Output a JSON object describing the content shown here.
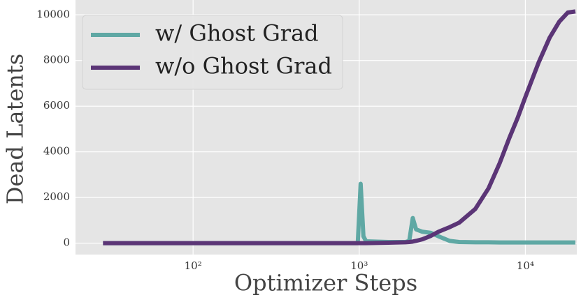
{
  "chart_data": {
    "type": "line",
    "x_label": "Optimizer Steps",
    "y_label": "Dead Latents",
    "x": [
      28.7,
      100,
      500,
      900,
      980,
      1020,
      1060,
      1100,
      1500,
      1900,
      2000,
      2100,
      2200,
      2400,
      2700,
      3000,
      3500,
      4000,
      5000,
      6000,
      7000,
      8000,
      9000,
      10000,
      12000,
      14000,
      16000,
      18000,
      20000
    ],
    "series": [
      {
        "name": "w/ Ghost Grad",
        "color": "#5fa8a4",
        "values": [
          0,
          0,
          0,
          0,
          0,
          2600,
          300,
          80,
          50,
          50,
          100,
          1100,
          600,
          500,
          450,
          300,
          100,
          50,
          40,
          40,
          30,
          30,
          30,
          30,
          30,
          30,
          30,
          30,
          30
        ]
      },
      {
        "name": "w/o Ghost Grad",
        "color": "#5b3576",
        "values": [
          0,
          0,
          0,
          0,
          0,
          0,
          0,
          0,
          20,
          40,
          50,
          70,
          100,
          170,
          320,
          500,
          700,
          900,
          1500,
          2400,
          3500,
          4600,
          5500,
          6400,
          7900,
          9000,
          9700,
          10100,
          10150
        ]
      }
    ],
    "xlog": true,
    "xlim": [
      19.6,
      20400
    ],
    "xticks": [
      {
        "value": 100,
        "label": "10²"
      },
      {
        "value": 1000,
        "label": "10³"
      },
      {
        "value": 10000,
        "label": "10⁴"
      }
    ],
    "ylim": [
      -500,
      10650
    ],
    "yticks": [
      0,
      2000,
      4000,
      6000,
      8000,
      10000
    ],
    "grid": true,
    "legend": "upper left"
  }
}
